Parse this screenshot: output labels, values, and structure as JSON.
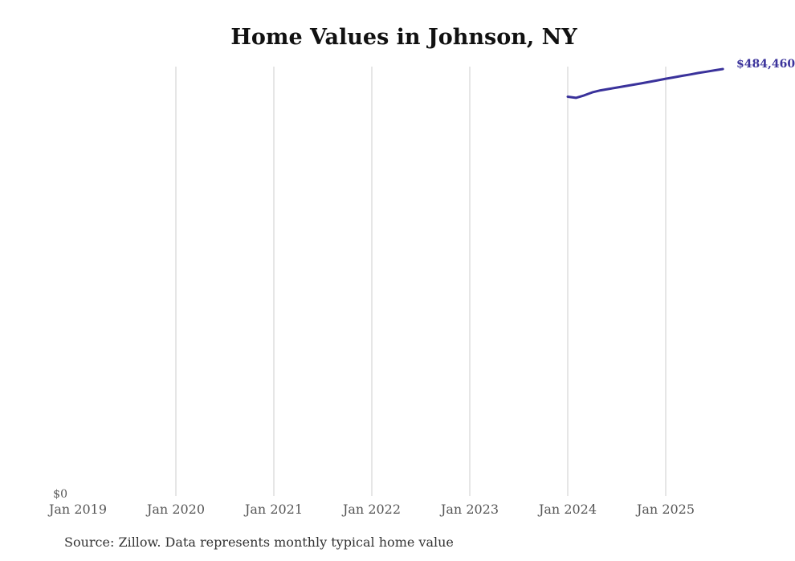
{
  "chart_data": {
    "type": "line",
    "title": "Home Values in Johnson, NY",
    "source_note": "Source: Zillow. Data represents monthly typical home value",
    "series_name": "Monthly typical home value",
    "y_zero_label": "$0",
    "end_label": "$484,460",
    "x": [
      "Jan 2024",
      "Feb 2024",
      "Mar 2024",
      "Apr 2024",
      "May 2024",
      "Jun 2024",
      "Jul 2024",
      "Aug 2024",
      "Sep 2024",
      "Oct 2024",
      "Nov 2024",
      "Dec 2024",
      "Jan 2025",
      "Feb 2025",
      "Mar 2025",
      "Apr 2025",
      "May 2025",
      "Jun 2025",
      "Jul 2025",
      "Aug 2025"
    ],
    "values": [
      453000,
      451800,
      454500,
      458000,
      460200,
      461800,
      463400,
      465000,
      466600,
      468200,
      469900,
      471600,
      473400,
      475000,
      476700,
      478300,
      480000,
      481500,
      483000,
      484460
    ],
    "start_month_index": 60,
    "x_ticks": [
      {
        "label": "Jan 2019",
        "month": 0,
        "gridline": false
      },
      {
        "label": "Jan 2020",
        "month": 12,
        "gridline": true
      },
      {
        "label": "Jan 2021",
        "month": 24,
        "gridline": true
      },
      {
        "label": "Jan 2022",
        "month": 36,
        "gridline": true
      },
      {
        "label": "Jan 2023",
        "month": 48,
        "gridline": true
      },
      {
        "label": "Jan 2024",
        "month": 60,
        "gridline": true
      },
      {
        "label": "Jan 2025",
        "month": 72,
        "gridline": true
      }
    ],
    "ylim": [
      0,
      487000
    ],
    "grid": "vertical-only",
    "legend": "none",
    "line_color": "#3a329b",
    "grid_color": "#cccccc",
    "tick_label_color": "#555555",
    "title_color": "#111111",
    "source_color": "#333333"
  }
}
